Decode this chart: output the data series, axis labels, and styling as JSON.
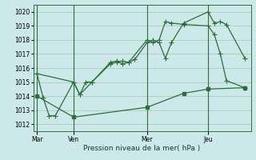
{
  "background_color": "#cce8e8",
  "grid_color": "#aaccbb",
  "line_color": "#2d6e3a",
  "spine_color": "#2d6e3a",
  "title": "Pression niveau de la mer( hPa )",
  "ylim": [
    1011.5,
    1020.5
  ],
  "yticks": [
    1012,
    1013,
    1014,
    1015,
    1016,
    1017,
    1018,
    1019,
    1020
  ],
  "xtick_labels": [
    "Mar",
    "Ven",
    "Mer",
    "Jeu"
  ],
  "xtick_positions": [
    0,
    3,
    9,
    14
  ],
  "vline_positions": [
    0,
    3,
    9,
    14
  ],
  "xlim": [
    -0.3,
    17.5
  ],
  "line1_x": [
    0,
    0.5,
    1.0,
    1.5,
    3.0,
    3.5,
    4.0,
    4.5,
    6.0,
    6.5,
    7.0,
    7.5,
    8.0,
    9.0,
    9.5,
    10.0,
    10.5,
    11.0,
    12.0,
    14.0,
    14.5,
    15.0,
    15.5,
    17.0
  ],
  "line1_y": [
    1015.6,
    1013.9,
    1012.6,
    1012.6,
    1015.0,
    1014.1,
    1015.0,
    1015.0,
    1016.4,
    1016.5,
    1016.3,
    1016.4,
    1016.6,
    1017.8,
    1018.0,
    1017.8,
    1016.7,
    1017.8,
    1019.2,
    1020.0,
    1019.2,
    1019.3,
    1019.1,
    1016.7
  ],
  "line2_x": [
    0,
    3.0,
    3.5,
    4.5,
    6.0,
    6.5,
    7.0,
    7.5,
    9.0,
    9.5,
    10.0,
    10.5,
    11.0,
    12.0,
    14.0,
    14.5,
    15.0,
    15.5,
    17.0
  ],
  "line2_y": [
    1015.6,
    1015.0,
    1014.1,
    1015.0,
    1016.3,
    1016.4,
    1016.5,
    1016.4,
    1018.0,
    1017.8,
    1018.0,
    1019.3,
    1019.2,
    1019.1,
    1019.0,
    1018.4,
    1017.0,
    1015.1,
    1014.6
  ],
  "line3_x": [
    0,
    3.0,
    9.0,
    12.0,
    14.0,
    17.0
  ],
  "line3_y": [
    1014.0,
    1012.5,
    1013.2,
    1014.2,
    1014.5,
    1014.6
  ],
  "ytick_fontsize": 5.5,
  "xtick_fontsize": 5.5,
  "title_fontsize": 6.5
}
